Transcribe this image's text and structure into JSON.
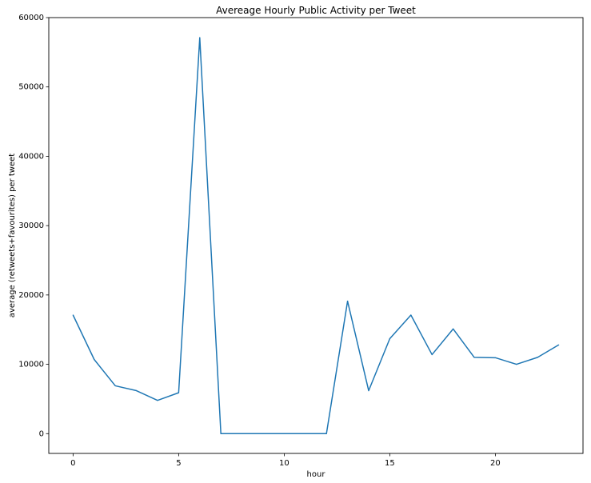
{
  "chart_data": {
    "type": "line",
    "title": "Avereage Hourly Public Activity per Tweet",
    "xlabel": "hour",
    "ylabel": "average (retweets+favourites) per tweet",
    "xlim": [
      -1.15,
      24.15
    ],
    "ylim": [
      -2850,
      60000
    ],
    "xticks": [
      0,
      5,
      10,
      15,
      20
    ],
    "yticks": [
      0,
      10000,
      20000,
      30000,
      40000,
      50000,
      60000
    ],
    "grid": false,
    "legend": "none",
    "series": [
      {
        "color": "#1f77b4",
        "x": [
          0,
          1,
          2,
          3,
          4,
          5,
          6,
          7,
          8,
          9,
          10,
          11,
          12,
          13,
          14,
          15,
          16,
          17,
          18,
          19,
          20,
          21,
          22,
          23
        ],
        "y": [
          17100,
          10700,
          6900,
          6200,
          4800,
          5900,
          57100,
          0,
          0,
          0,
          0,
          0,
          0,
          19100,
          6200,
          13700,
          17100,
          11400,
          15100,
          11000,
          10950,
          10000,
          11000,
          12800
        ]
      }
    ]
  }
}
